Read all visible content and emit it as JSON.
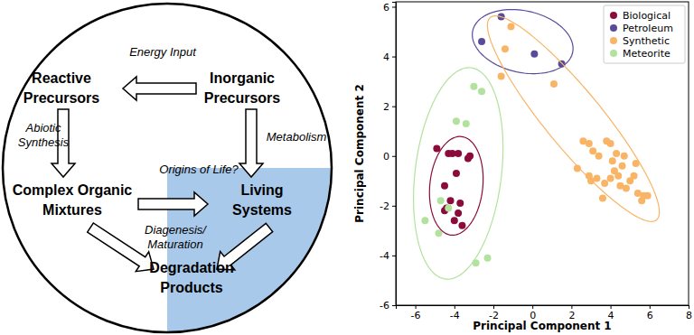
{
  "diagram": {
    "nodes": [
      {
        "lines": [
          "Reactive",
          "Precursors"
        ]
      },
      {
        "lines": [
          "Inorganic",
          "Precursors"
        ]
      },
      {
        "lines": [
          "Complex Organic",
          "Mixtures"
        ]
      },
      {
        "lines": [
          "Living",
          "Systems"
        ]
      },
      {
        "lines": [
          "Degradation",
          "Products"
        ]
      }
    ],
    "edge_labels": [
      {
        "lines": [
          "Energy Input"
        ]
      },
      {
        "lines": [
          "Abiotic",
          "Synthesis"
        ]
      },
      {
        "lines": [
          "Metabolism"
        ]
      },
      {
        "lines": [
          "Origins of Life?"
        ]
      },
      {
        "lines": [
          "Diagenesis/",
          "Maturation"
        ]
      }
    ]
  },
  "chart_data": {
    "type": "scatter",
    "x_label": "Principal Component 1",
    "y_label": "Principal Component 2",
    "xlim": [
      -7,
      8
    ],
    "ylim": [
      -6,
      6.2
    ],
    "xticks": [
      -6,
      -4,
      -2,
      0,
      2,
      4,
      6,
      8
    ],
    "yticks": [
      -6,
      -4,
      -2,
      0,
      2,
      4,
      6
    ],
    "legend": "upper right",
    "marker": "circle",
    "series": [
      {
        "name": "Biological",
        "color": "#8b0c3b",
        "x": [
          -4.9,
          -4.3,
          -3.8,
          -3.3,
          -3.2,
          -3.9,
          -4.5,
          -4.2,
          -3.7,
          -3.8,
          -4.0,
          -4.5,
          -4.4,
          -3.6,
          -4.1
        ],
        "y": [
          0.3,
          0.1,
          0.1,
          -0.1,
          0.0,
          -0.7,
          -1.2,
          -1.8,
          -1.9,
          -2.3,
          -2.6,
          -2.2,
          -2.1,
          -2.8,
          0.1
        ],
        "ellipse": {
          "center": [
            -3.9,
            -1.2
          ],
          "semi_axes": [
            2.0,
            1.35
          ],
          "angle": 80
        }
      },
      {
        "name": "Petroleum",
        "color": "#5a4a9c",
        "x": [
          -2.6,
          -1.6,
          0.1,
          1.5
        ],
        "y": [
          4.6,
          5.6,
          4.1,
          3.7
        ],
        "ellipse": {
          "center": [
            -0.5,
            4.6
          ],
          "semi_axes": [
            2.6,
            1.25
          ],
          "angle": -8
        }
      },
      {
        "name": "Synthetic",
        "color": "#f9b565",
        "x": [
          -1.4,
          -1.1,
          -1.6,
          1.1,
          2.3,
          2.6,
          2.9,
          3.1,
          3.3,
          3.4,
          3.6,
          3.8,
          4.0,
          4.0,
          4.2,
          4.3,
          4.4,
          4.5,
          4.6,
          4.7,
          4.8,
          5.0,
          5.2,
          5.4,
          5.6,
          5.7,
          5.9,
          3.0,
          2.9,
          4.1,
          3.7,
          5.3
        ],
        "y": [
          4.3,
          5.2,
          3.2,
          2.9,
          -0.5,
          0.6,
          0.5,
          0.2,
          -0.9,
          0.0,
          -1.7,
          0.6,
          0.5,
          -0.9,
          -0.6,
          0.1,
          -0.8,
          -1.2,
          -0.4,
          0.0,
          -1.3,
          -1.0,
          -0.8,
          -1.5,
          -1.8,
          -1.6,
          -1.6,
          -1.0,
          -0.8,
          -0.2,
          -1.1,
          -0.3
        ],
        "ellipse": {
          "center": [
            2.1,
            1.5
          ],
          "semi_axes": [
            5.9,
            1.3
          ],
          "angle": -43
        }
      },
      {
        "name": "Meteorite",
        "color": "#b2e29d",
        "x": [
          -5.5,
          -4.8,
          -4.7,
          -3.9,
          -3.4,
          -3.0,
          -2.6,
          -2.3,
          -2.9,
          -4.3
        ],
        "y": [
          -2.6,
          -3.1,
          -1.8,
          1.4,
          1.3,
          2.8,
          2.6,
          -4.1,
          -4.3,
          -2.1
        ],
        "ellipse": {
          "center": [
            -3.8,
            -0.7
          ],
          "semi_axes": [
            4.3,
            2.2
          ],
          "angle": 80
        }
      }
    ]
  }
}
